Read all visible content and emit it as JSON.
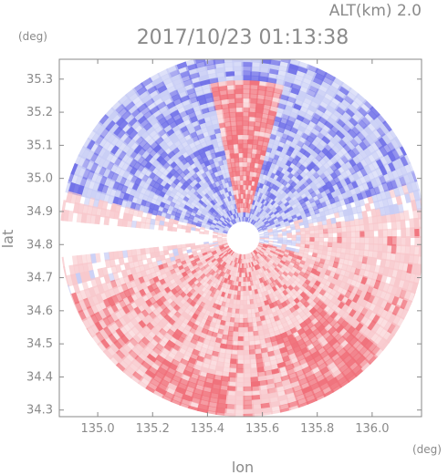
{
  "header": {
    "altitude_label": "ALT(km) 2.0",
    "timestamp": "2017/10/23 01:13:38"
  },
  "chart_data": {
    "type": "heatmap",
    "title": "2017/10/23 01:13:38",
    "xlabel": "lon",
    "ylabel": "lat",
    "x_unit": "(deg)",
    "y_unit": "(deg)",
    "xlim": [
      134.86,
      136.18
    ],
    "ylim": [
      34.28,
      35.36
    ],
    "x_ticks": [
      135.0,
      135.2,
      135.4,
      135.6,
      135.8,
      136.0
    ],
    "x_tick_labels": [
      "135.0",
      "135.2",
      "135.4",
      "135.6",
      "135.8",
      "136.0"
    ],
    "y_ticks": [
      34.3,
      34.4,
      34.5,
      34.6,
      34.7,
      34.8,
      34.9,
      35.0,
      35.1,
      35.2,
      35.3
    ],
    "y_tick_labels": [
      "34.3",
      "34.4",
      "34.5",
      "34.6",
      "34.7",
      "34.8",
      "34.9",
      "35.0",
      "35.1",
      "35.2",
      "35.3"
    ],
    "radar_center": {
      "lon": 135.53,
      "lat": 34.82
    },
    "colors": {
      "positive_strong": "#f0707a",
      "positive_light": "#f8c8cc",
      "negative_strong": "#7070e8",
      "negative_light": "#c8cdf5",
      "axis": "#8a8a8a"
    },
    "regions": [
      {
        "name": "north band",
        "lat_range": [
          34.85,
          35.05
        ],
        "sign": "negative"
      },
      {
        "name": "central north plume",
        "lon_range": [
          135.45,
          135.65
        ],
        "lat_range": [
          34.9,
          35.2
        ],
        "sign": "positive"
      },
      {
        "name": "south band",
        "lat_range": [
          34.6,
          34.8
        ],
        "sign": "positive"
      },
      {
        "name": "southwest sector",
        "lon_range": [
          134.9,
          135.3
        ],
        "lat_range": [
          34.3,
          34.65
        ],
        "sign": "positive"
      },
      {
        "name": "southeast sector",
        "lon_range": [
          135.6,
          135.85
        ],
        "lat_range": [
          34.35,
          34.5
        ],
        "sign": "positive"
      }
    ]
  }
}
